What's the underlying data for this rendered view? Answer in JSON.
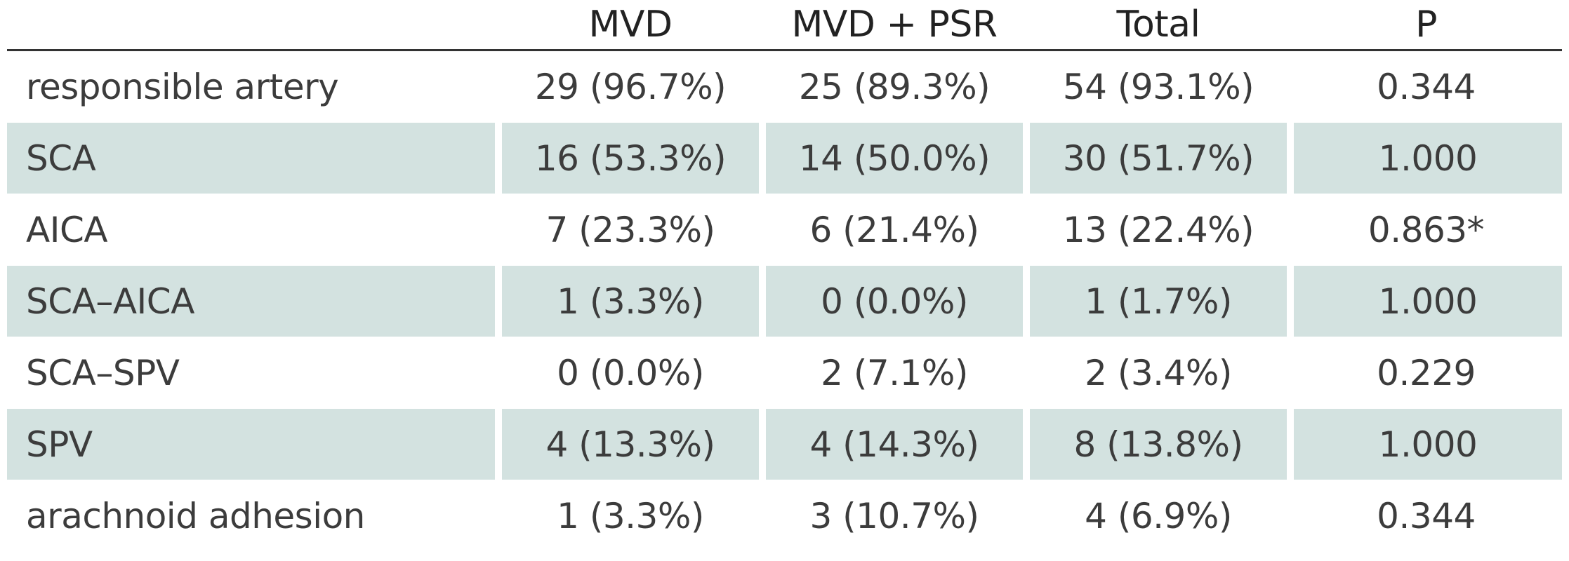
{
  "table": {
    "headers": [
      "",
      "MVD",
      "MVD + PSR",
      "Total",
      "P"
    ],
    "rows": [
      {
        "label": "responsible artery",
        "mvd": "29 (96.7%)",
        "mvd_psr": "25 (89.3%)",
        "total": "54 (93.1%)",
        "p": "0.344",
        "shaded": false
      },
      {
        "label": "SCA",
        "mvd": "16 (53.3%)",
        "mvd_psr": "14 (50.0%)",
        "total": "30 (51.7%)",
        "p": "1.000",
        "shaded": true
      },
      {
        "label": "AICA",
        "mvd": "7 (23.3%)",
        "mvd_psr": "6 (21.4%)",
        "total": "13 (22.4%)",
        "p": "0.863*",
        "shaded": false
      },
      {
        "label": "SCA–AICA",
        "mvd": "1 (3.3%)",
        "mvd_psr": "0 (0.0%)",
        "total": "1 (1.7%)",
        "p": "1.000",
        "shaded": true
      },
      {
        "label": "SCA–SPV",
        "mvd": "0 (0.0%)",
        "mvd_psr": "2 (7.1%)",
        "total": "2 (3.4%)",
        "p": "0.229",
        "shaded": false
      },
      {
        "label": "SPV",
        "mvd": "4 (13.3%)",
        "mvd_psr": "4 (14.3%)",
        "total": "8 (13.8%)",
        "p": "1.000",
        "shaded": true
      },
      {
        "label": "arachnoid adhesion",
        "mvd": "1 (3.3%)",
        "mvd_psr": "3 (10.7%)",
        "total": "4 (6.9%)",
        "p": "0.344",
        "shaded": false
      }
    ]
  },
  "colors": {
    "shade": "#d3e2e0",
    "rule": "#333333",
    "text": "#3c3c3c"
  }
}
